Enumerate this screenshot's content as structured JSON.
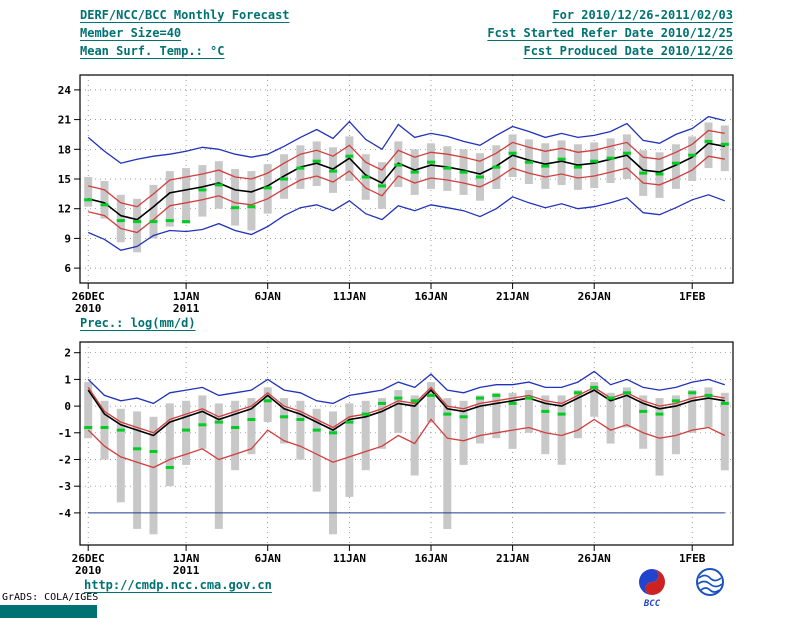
{
  "header": {
    "title": "DERF/NCC/BCC Monthly Forecast",
    "for_range": "For 2010/12/26-2011/02/03",
    "member_size": "Member Size=40",
    "refer_date": "Fcst Started Refer Date 2010/12/25",
    "var_label": "Mean Surf. Temp.: °C",
    "produced_date": "Fcst Produced Date 2010/12/26"
  },
  "panel2_label": "Prec.: log(mm/d)",
  "footer": {
    "url": "http://cmdp.ncc.cma.gov.cn",
    "grads_credit": "GrADS: COLA/IGES",
    "bcc_logo_text": "BCC"
  },
  "colors": {
    "accent_teal": "#007272",
    "bar_gray": "#c8c8c8",
    "line_blue": "#2233bb",
    "line_red": "#d43d3d",
    "line_black": "#000000",
    "marker_green": "#00cc22",
    "logo_red": "#cc2222",
    "logo_blue": "#2244cc"
  },
  "chart_data": [
    {
      "type": "line",
      "name": "mean-surface-temperature",
      "title": "Mean Surf. Temp.: °C",
      "grid": "dotted",
      "legend": "none",
      "n_days": 40,
      "ylim": [
        4.5,
        25.5
      ],
      "yticks": [
        6,
        9,
        12,
        15,
        18,
        21,
        24
      ],
      "xticks": [
        {
          "day": 0,
          "label": "26DEC",
          "sub": "2010"
        },
        {
          "day": 6,
          "label": "1JAN",
          "sub": "2011"
        },
        {
          "day": 11,
          "label": "6JAN"
        },
        {
          "day": 16,
          "label": "11JAN"
        },
        {
          "day": 21,
          "label": "16JAN"
        },
        {
          "day": 26,
          "label": "21JAN"
        },
        {
          "day": 31,
          "label": "26JAN"
        },
        {
          "day": 37,
          "label": "1FEB"
        }
      ],
      "series": [
        {
          "name": "ensemble-max",
          "color": "#2233bb",
          "width": 1.3,
          "values": [
            19.2,
            17.8,
            16.6,
            17.0,
            17.3,
            17.5,
            17.8,
            18.2,
            18.0,
            17.5,
            17.2,
            17.5,
            18.3,
            19.2,
            20.0,
            19.1,
            20.8,
            19.0,
            18.0,
            20.5,
            19.2,
            19.6,
            19.3,
            18.8,
            18.4,
            19.4,
            20.3,
            19.8,
            19.2,
            19.6,
            19.2,
            19.4,
            19.8,
            20.6,
            18.9,
            18.6,
            19.5,
            20.1,
            21.3,
            20.9
          ]
        },
        {
          "name": "ensemble-min",
          "color": "#2233bb",
          "width": 1.3,
          "values": [
            9.6,
            8.9,
            7.8,
            8.2,
            9.3,
            9.8,
            9.7,
            9.9,
            10.5,
            9.8,
            9.4,
            10.2,
            11.3,
            12.1,
            12.4,
            11.8,
            12.8,
            11.5,
            10.9,
            12.3,
            11.8,
            12.4,
            12.1,
            11.8,
            11.2,
            12.0,
            13.2,
            12.6,
            12.1,
            12.5,
            12.0,
            12.2,
            12.6,
            13.1,
            11.6,
            11.4,
            12.1,
            12.9,
            13.4,
            12.8
          ]
        },
        {
          "name": "mean-plus-spread",
          "color": "#d43d3d",
          "width": 1.3,
          "values": [
            14.3,
            13.9,
            12.6,
            12.2,
            13.5,
            14.9,
            15.2,
            15.5,
            15.9,
            15.2,
            15.0,
            15.6,
            16.6,
            17.5,
            17.9,
            17.3,
            18.4,
            16.7,
            15.9,
            17.9,
            17.2,
            17.7,
            17.5,
            17.2,
            16.8,
            17.6,
            18.7,
            18.2,
            17.8,
            18.1,
            17.7,
            17.9,
            18.3,
            18.7,
            17.2,
            17.0,
            17.7,
            18.5,
            19.9,
            19.6
          ]
        },
        {
          "name": "mean-minus-spread",
          "color": "#d43d3d",
          "width": 1.3,
          "values": [
            11.7,
            11.3,
            10.0,
            9.6,
            10.9,
            12.3,
            12.6,
            12.9,
            13.3,
            12.6,
            12.4,
            13.0,
            14.0,
            14.9,
            15.3,
            14.7,
            15.8,
            14.1,
            13.3,
            15.3,
            14.6,
            15.1,
            14.9,
            14.6,
            14.2,
            15.0,
            16.1,
            15.6,
            15.2,
            15.5,
            15.1,
            15.3,
            15.7,
            16.1,
            14.6,
            14.4,
            15.1,
            15.9,
            17.3,
            17.0
          ]
        },
        {
          "name": "ensemble-mean",
          "color": "#000000",
          "width": 1.6,
          "values": [
            13.0,
            12.6,
            11.3,
            10.9,
            12.2,
            13.6,
            13.9,
            14.2,
            14.6,
            13.9,
            13.7,
            14.3,
            15.3,
            16.2,
            16.6,
            16.0,
            17.1,
            15.4,
            14.6,
            16.6,
            15.9,
            16.4,
            16.2,
            15.9,
            15.5,
            16.3,
            17.4,
            16.9,
            16.5,
            16.8,
            16.4,
            16.6,
            17.0,
            17.4,
            15.9,
            15.7,
            16.4,
            17.2,
            18.6,
            18.3
          ]
        }
      ],
      "bars": {
        "name": "ensemble-spread",
        "color": "#c8c8c8",
        "low": [
          12.2,
          11.0,
          8.6,
          7.6,
          9.0,
          10.2,
          10.5,
          11.2,
          12.0,
          10.3,
          9.8,
          11.5,
          13.0,
          14.0,
          14.3,
          13.6,
          14.8,
          12.9,
          12.0,
          14.2,
          13.4,
          14.0,
          13.8,
          13.4,
          12.8,
          14.0,
          15.2,
          14.5,
          14.0,
          14.4,
          13.9,
          14.1,
          14.6,
          15.0,
          13.3,
          13.1,
          14.0,
          14.8,
          16.1,
          15.8
        ],
        "high": [
          15.2,
          14.8,
          13.4,
          13.0,
          14.4,
          15.8,
          16.1,
          16.4,
          16.8,
          16.0,
          15.8,
          16.5,
          17.5,
          18.4,
          18.8,
          18.2,
          19.3,
          17.5,
          16.7,
          18.8,
          18.0,
          18.6,
          18.3,
          18.0,
          17.6,
          18.4,
          19.5,
          19.0,
          18.6,
          18.9,
          18.5,
          18.7,
          19.1,
          19.5,
          17.9,
          17.7,
          18.5,
          19.3,
          20.7,
          20.4
        ]
      },
      "markers": {
        "name": "observation",
        "color": "#00cc22",
        "values": [
          12.9,
          12.4,
          10.8,
          10.7,
          10.7,
          10.8,
          10.7,
          13.9,
          14.4,
          12.1,
          12.2,
          14.1,
          15.0,
          16.1,
          16.8,
          15.8,
          17.3,
          15.2,
          14.3,
          16.4,
          15.7,
          16.7,
          16.1,
          15.7,
          15.2,
          16.2,
          17.6,
          16.7,
          16.3,
          17.0,
          16.2,
          16.8,
          17.1,
          17.6,
          15.6,
          15.5,
          16.6,
          17.4,
          18.8,
          18.5
        ]
      }
    },
    {
      "type": "line",
      "name": "precipitation",
      "title": "Prec.: log(mm/d)",
      "grid": "dotted",
      "legend": "none",
      "n_days": 40,
      "ylim": [
        -5.2,
        2.4
      ],
      "yticks": [
        -4,
        -3,
        -2,
        -1,
        0,
        1,
        2
      ],
      "xticks": [
        {
          "day": 0,
          "label": "26DEC",
          "sub": "2010"
        },
        {
          "day": 6,
          "label": "1JAN",
          "sub": "2011"
        },
        {
          "day": 11,
          "label": "6JAN"
        },
        {
          "day": 16,
          "label": "11JAN"
        },
        {
          "day": 21,
          "label": "16JAN"
        },
        {
          "day": 26,
          "label": "21JAN"
        },
        {
          "day": 31,
          "label": "26JAN"
        },
        {
          "day": 37,
          "label": "1FEB"
        }
      ],
      "series": [
        {
          "name": "ensemble-max",
          "color": "#2233bb",
          "width": 1.3,
          "values": [
            1.0,
            0.4,
            0.2,
            0.3,
            0.1,
            0.5,
            0.6,
            0.7,
            0.4,
            0.5,
            0.6,
            1.0,
            0.6,
            0.5,
            0.2,
            0.1,
            0.4,
            0.5,
            0.6,
            0.9,
            0.7,
            1.2,
            0.6,
            0.5,
            0.7,
            0.8,
            0.8,
            0.9,
            0.7,
            0.7,
            0.9,
            1.3,
            0.8,
            1.0,
            0.7,
            0.6,
            0.7,
            0.9,
            1.0,
            0.8
          ]
        },
        {
          "name": "dry-floor",
          "color": "#223a8c",
          "width": 1.0,
          "constant": -4
        },
        {
          "name": "mean-plus-spread",
          "color": "#d43d3d",
          "width": 1.3,
          "values": [
            0.7,
            -0.2,
            -0.6,
            -0.8,
            -1.0,
            -0.5,
            -0.3,
            -0.1,
            -0.4,
            -0.2,
            0.0,
            0.5,
            0.0,
            -0.2,
            -0.5,
            -0.8,
            -0.4,
            -0.3,
            -0.1,
            0.2,
            0.1,
            0.7,
            0.0,
            -0.1,
            0.1,
            0.2,
            0.3,
            0.4,
            0.2,
            0.1,
            0.4,
            0.7,
            0.3,
            0.5,
            0.2,
            0.0,
            0.1,
            0.3,
            0.4,
            0.3
          ]
        },
        {
          "name": "mean-minus-spread",
          "color": "#d43d3d",
          "width": 1.3,
          "values": [
            -0.9,
            -1.5,
            -1.9,
            -2.1,
            -2.3,
            -2.0,
            -1.8,
            -1.6,
            -2.0,
            -1.8,
            -1.6,
            -0.9,
            -1.3,
            -1.5,
            -1.8,
            -2.1,
            -1.9,
            -1.7,
            -1.5,
            -1.1,
            -1.4,
            -0.5,
            -1.2,
            -1.3,
            -1.1,
            -1.0,
            -0.9,
            -0.8,
            -1.0,
            -1.1,
            -0.9,
            -0.5,
            -0.9,
            -0.7,
            -1.0,
            -1.2,
            -1.1,
            -0.9,
            -0.8,
            -1.1
          ]
        },
        {
          "name": "ensemble-mean",
          "color": "#000000",
          "width": 1.6,
          "values": [
            0.6,
            -0.3,
            -0.7,
            -0.9,
            -1.1,
            -0.6,
            -0.4,
            -0.2,
            -0.5,
            -0.3,
            -0.1,
            0.4,
            -0.1,
            -0.3,
            -0.6,
            -0.9,
            -0.5,
            -0.4,
            -0.2,
            0.1,
            0.0,
            0.6,
            -0.1,
            -0.2,
            0.0,
            0.1,
            0.2,
            0.3,
            0.1,
            0.0,
            0.3,
            0.6,
            0.2,
            0.4,
            0.1,
            -0.1,
            0.0,
            0.2,
            0.3,
            0.2
          ]
        }
      ],
      "bars": {
        "name": "ensemble-spread",
        "color": "#c8c8c8",
        "low": [
          -1.2,
          -2.0,
          -3.6,
          -4.6,
          -4.8,
          -3.0,
          -2.2,
          -1.6,
          -4.6,
          -2.4,
          -1.8,
          -0.6,
          -1.4,
          -2.0,
          -3.2,
          -4.8,
          -3.4,
          -2.4,
          -1.6,
          -1.0,
          -2.6,
          -0.6,
          -4.6,
          -2.2,
          -1.4,
          -1.2,
          -1.6,
          -1.0,
          -1.8,
          -2.2,
          -1.2,
          -0.4,
          -1.4,
          -0.8,
          -1.6,
          -2.6,
          -1.8,
          -1.0,
          -0.8,
          -2.4
        ],
        "high": [
          0.9,
          0.2,
          -0.1,
          -0.2,
          -0.4,
          0.1,
          0.2,
          0.4,
          0.1,
          0.2,
          0.3,
          0.7,
          0.3,
          0.2,
          -0.1,
          -0.2,
          0.1,
          0.2,
          0.3,
          0.6,
          0.4,
          0.9,
          0.3,
          0.2,
          0.4,
          0.5,
          0.5,
          0.6,
          0.4,
          0.4,
          0.6,
          0.9,
          0.5,
          0.7,
          0.4,
          0.3,
          0.4,
          0.6,
          0.7,
          0.5
        ]
      },
      "markers": {
        "name": "observation",
        "color": "#00cc22",
        "values": [
          -0.8,
          -0.8,
          -0.9,
          -1.6,
          -1.7,
          -2.3,
          -0.9,
          -0.7,
          -0.6,
          -0.8,
          -0.5,
          0.2,
          -0.4,
          -0.5,
          -0.9,
          -1.0,
          -0.6,
          -0.3,
          0.1,
          0.3,
          0.2,
          0.4,
          -0.3,
          -0.4,
          0.3,
          0.4,
          0.1,
          0.3,
          -0.2,
          -0.3,
          0.5,
          0.7,
          0.3,
          0.5,
          -0.2,
          -0.3,
          0.2,
          0.5,
          0.4,
          0.1
        ]
      }
    }
  ]
}
